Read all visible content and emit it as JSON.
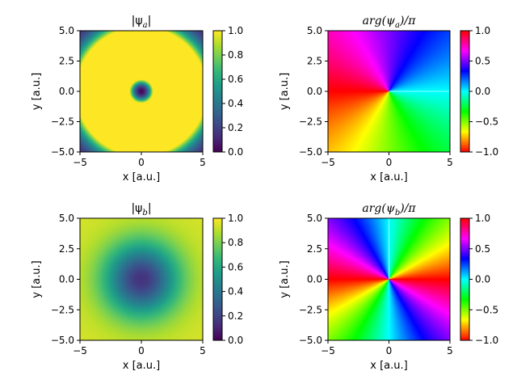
{
  "chart_data": [
    {
      "type": "heatmap",
      "title": "|ψa|",
      "title_parts": {
        "pre": "|ψ",
        "sub": "a",
        "post": "|"
      },
      "xlabel": "x [a.u.]",
      "ylabel": "y [a.u.]",
      "xlim": [
        -5,
        5
      ],
      "ylim": [
        -5,
        5
      ],
      "xticks": [
        "−5",
        "0",
        "5"
      ],
      "yticks": [
        "5.0",
        "2.5",
        "0.0",
        "−2.5",
        "−5.0"
      ],
      "field": "abs",
      "mode": "a",
      "colormap": "viridis",
      "colorbar": {
        "range": [
          0,
          1
        ],
        "ticks": [
          "1.0",
          "0.8",
          "0.6",
          "0.4",
          "0.2",
          "0.0"
        ],
        "values": [
          1.0,
          0.8,
          0.6,
          0.4,
          0.2,
          0.0
        ]
      }
    },
    {
      "type": "heatmap",
      "title": "arg(ψa)/π",
      "title_parts": {
        "pre": "arg(ψ",
        "sub": "a",
        "post": ")/π"
      },
      "xlabel": "x [a.u.]",
      "ylabel": "y [a.u.]",
      "xlim": [
        -5,
        5
      ],
      "ylim": [
        -5,
        5
      ],
      "xticks": [
        "−5",
        "0",
        "5"
      ],
      "yticks": [
        "5.0",
        "2.5",
        "0.0",
        "−2.5",
        "−5.0"
      ],
      "field": "phase",
      "mode": "a",
      "colormap": "hsv",
      "colorbar": {
        "range": [
          -1,
          1
        ],
        "ticks": [
          "1.0",
          "0.5",
          "0.0",
          "−0.5",
          "−1.0"
        ],
        "values": [
          1.0,
          0.5,
          0.0,
          -0.5,
          -1.0
        ]
      }
    },
    {
      "type": "heatmap",
      "title": "|ψb|",
      "title_parts": {
        "pre": "|ψ",
        "sub": "b",
        "post": "|"
      },
      "xlabel": "x [a.u.]",
      "ylabel": "y [a.u.]",
      "xlim": [
        -5,
        5
      ],
      "ylim": [
        -5,
        5
      ],
      "xticks": [
        "−5",
        "0",
        "5"
      ],
      "yticks": [
        "5.0",
        "2.5",
        "0.0",
        "−2.5",
        "−5.0"
      ],
      "field": "abs",
      "mode": "b",
      "colormap": "viridis",
      "colorbar": {
        "range": [
          0,
          1
        ],
        "ticks": [
          "1.0",
          "0.8",
          "0.6",
          "0.4",
          "0.2",
          "0.0"
        ],
        "values": [
          1.0,
          0.8,
          0.6,
          0.4,
          0.2,
          0.0
        ]
      }
    },
    {
      "type": "heatmap",
      "title": "arg(ψb)/π",
      "title_parts": {
        "pre": "arg(ψ",
        "sub": "b",
        "post": ")/π"
      },
      "xlabel": "x [a.u.]",
      "ylabel": "y [a.u.]",
      "xlim": [
        -5,
        5
      ],
      "ylim": [
        -5,
        5
      ],
      "xticks": [
        "−5",
        "0",
        "5"
      ],
      "yticks": [
        "5.0",
        "2.5",
        "0.0",
        "−2.5",
        "−5.0"
      ],
      "field": "phase",
      "mode": "b",
      "colormap": "hsv",
      "colorbar": {
        "range": [
          -1,
          1
        ],
        "ticks": [
          "1.0",
          "0.5",
          "0.0",
          "−0.5",
          "−1.0"
        ],
        "values": [
          1.0,
          0.5,
          0.0,
          -0.5,
          -1.0
        ]
      }
    }
  ]
}
